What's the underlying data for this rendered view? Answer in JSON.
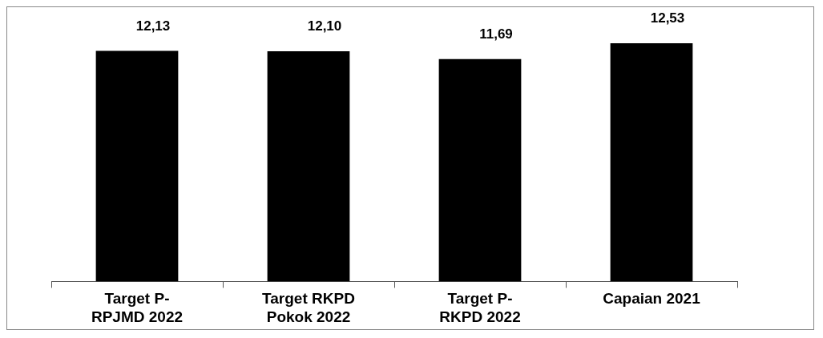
{
  "chart_data": {
    "type": "bar",
    "categories": [
      "Target P-RPJMD 2022",
      "Target RKPD Pokok 2022",
      "Target P-RKPD 2022",
      "Capaian 2021"
    ],
    "values": [
      12.13,
      12.1,
      11.69,
      12.53
    ],
    "value_labels": [
      "12,13",
      "12,10",
      "11,69",
      "12,53"
    ],
    "color": "#000000",
    "tick_labels": "x",
    "grid": false,
    "legend": false
  }
}
